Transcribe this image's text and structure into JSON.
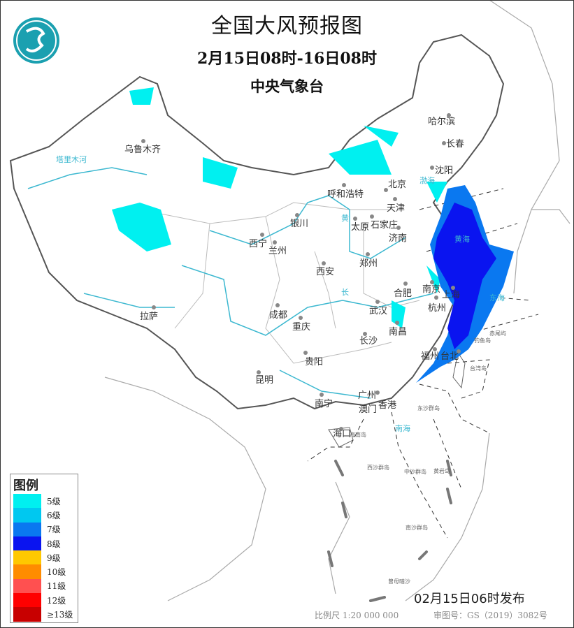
{
  "header": {
    "title": "全国大风预报图",
    "period": "2月15日08时-16日08时",
    "issuer": "中央气象台"
  },
  "legend": {
    "title": "图例",
    "items": [
      {
        "label": "5级",
        "color": "#00f0f0"
      },
      {
        "label": "6级",
        "color": "#00c8f0"
      },
      {
        "label": "7级",
        "color": "#0a78f0"
      },
      {
        "label": "8级",
        "color": "#0a14f0"
      },
      {
        "label": "9级",
        "color": "#ffc800"
      },
      {
        "label": "10级",
        "color": "#ff8c00"
      },
      {
        "label": "11级",
        "color": "#ff5050"
      },
      {
        "label": "12级",
        "color": "#ff0000"
      },
      {
        "label": "≥13级",
        "color": "#c80000"
      }
    ]
  },
  "cities": {
    "harbin": "哈尔滨",
    "changchun": "长春",
    "shenyang": "沈阳",
    "urumqi": "乌鲁木齐",
    "hohhot": "呼和浩特",
    "beijing": "北京",
    "tianjin": "天津",
    "yinchuan": "银川",
    "taiyuan": "太原",
    "shijiazhuang": "石家庄",
    "jinan": "济南",
    "xining": "西宁",
    "lanzhou": "兰州",
    "zhengzhou": "郑州",
    "xian": "西安",
    "hefei": "合肥",
    "nanjing": "南京",
    "shanghai": "上海",
    "lhasa": "拉萨",
    "chengdu": "成都",
    "wuhan": "武汉",
    "hangzhou": "杭州",
    "chongqing": "重庆",
    "changsha": "长沙",
    "nanchang": "南昌",
    "fuzhou": "福州",
    "taipei": "台北",
    "guiyang": "贵阳",
    "kunming": "昆明",
    "nanning": "南宁",
    "guangzhou": "广州",
    "macau": "澳门",
    "hongkong": "香港",
    "haikou": "海口"
  },
  "islands": {
    "taiwan": "台湾岛",
    "diaoyu": "钓鱼岛",
    "chiwei": "赤尾屿",
    "dongsha": "东沙群岛",
    "hainan": "海南岛",
    "xisha": "西沙群岛",
    "zhongsha": "中沙群岛",
    "huangyan": "黄岩岛",
    "nansha": "南沙群岛",
    "zengmu": "曾母暗沙"
  },
  "water": {
    "bohai": "渤海",
    "huanghai_sea": "黄海",
    "donghai": "东海",
    "nanhai": "南海",
    "yellow_river": "黄",
    "yangtze": "长",
    "tarim": "塔里木河"
  },
  "footer": {
    "issued": "02月15日06时发布",
    "scale": "比例尺  1:20 000 000",
    "approval": "审图号：GS（2019）3082号"
  }
}
